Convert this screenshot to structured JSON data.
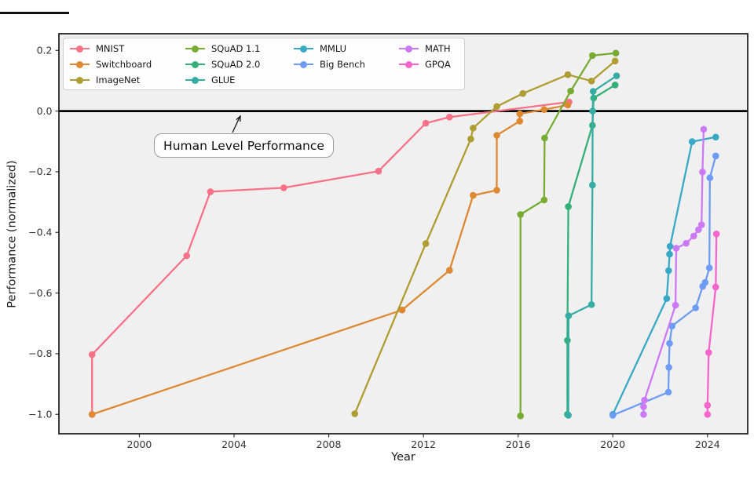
{
  "chart_data": {
    "type": "line",
    "title": "",
    "xlabel": "Year",
    "ylabel": "Performance (normalized)",
    "xlim": [
      1996.6,
      2025.7
    ],
    "ylim": [
      -1.064,
      0.255
    ],
    "grid": false,
    "axes_background": "#f0f0f0",
    "x_ticks": [
      2000,
      2004,
      2008,
      2012,
      2016,
      2020,
      2024
    ],
    "x_tick_labels": [
      "2000",
      "2004",
      "2008",
      "2012",
      "2016",
      "2020",
      "2024"
    ],
    "y_ticks": [
      0.2,
      0.0,
      -0.2,
      -0.4,
      -0.6,
      -0.8,
      -1.0
    ],
    "y_tick_labels": [
      "0.2",
      "0.0",
      "−0.2",
      "−0.4",
      "−0.6",
      "−0.8",
      "−1.0"
    ],
    "reference_line": {
      "y": 0.0,
      "color": "#000000"
    },
    "annotation": {
      "text": "Human Level Performance"
    },
    "legend_position": "upper left",
    "legend": {
      "columns": [
        [
          "MNIST",
          "Switchboard",
          "ImageNet"
        ],
        [
          "SQuAD 1.1",
          "SQuAD 2.0",
          "GLUE"
        ],
        [
          "MMLU",
          "Big Bench"
        ],
        [
          "MATH",
          "GPQA"
        ]
      ]
    },
    "series": [
      {
        "name": "MNIST",
        "color": "#f77189",
        "points": [
          [
            1998.0,
            -1.0
          ],
          [
            1998.0,
            -0.803
          ],
          [
            2002.0,
            -0.477
          ],
          [
            2003.0,
            -0.266
          ],
          [
            2006.1,
            -0.253
          ],
          [
            2010.1,
            -0.198
          ],
          [
            2012.1,
            -0.04
          ],
          [
            2013.1,
            -0.02
          ],
          [
            2018.15,
            0.03
          ]
        ]
      },
      {
        "name": "Switchboard",
        "color": "#dc8932",
        "points": [
          [
            1998.0,
            -1.0
          ],
          [
            2011.1,
            -0.656
          ],
          [
            2013.1,
            -0.525
          ],
          [
            2014.1,
            -0.278
          ],
          [
            2015.1,
            -0.261
          ],
          [
            2015.1,
            -0.08
          ],
          [
            2016.07,
            -0.033
          ],
          [
            2016.07,
            -0.009
          ],
          [
            2017.1,
            0.005
          ],
          [
            2018.1,
            0.02
          ]
        ]
      },
      {
        "name": "ImageNet",
        "color": "#ae9d31",
        "points": [
          [
            2009.1,
            -0.998
          ],
          [
            2012.1,
            -0.437
          ],
          [
            2014.0,
            -0.092
          ],
          [
            2014.1,
            -0.056
          ],
          [
            2015.1,
            0.015
          ],
          [
            2016.2,
            0.058
          ],
          [
            2018.1,
            0.12
          ],
          [
            2019.1,
            0.099
          ],
          [
            2020.1,
            0.165
          ]
        ]
      },
      {
        "name": "SQuAD 1.1",
        "color": "#77ab31",
        "points": [
          [
            2016.1,
            -1.005
          ],
          [
            2016.1,
            -0.341
          ],
          [
            2017.1,
            -0.293
          ],
          [
            2017.12,
            -0.089
          ],
          [
            2018.22,
            0.066
          ],
          [
            2019.14,
            0.183
          ],
          [
            2020.13,
            0.191
          ]
        ]
      },
      {
        "name": "SQuAD 2.0",
        "color": "#33b07a",
        "points": [
          [
            2018.08,
            -1.0
          ],
          [
            2018.08,
            -0.756
          ],
          [
            2018.12,
            -0.315
          ],
          [
            2019.14,
            -0.047
          ],
          [
            2019.19,
            0.043
          ],
          [
            2020.1,
            0.086
          ]
        ]
      },
      {
        "name": "GLUE",
        "color": "#36ada4",
        "points": [
          [
            2018.12,
            -1.003
          ],
          [
            2018.13,
            -0.675
          ],
          [
            2019.1,
            -0.638
          ],
          [
            2019.14,
            -0.244
          ],
          [
            2019.15,
            0.0
          ],
          [
            2019.17,
            0.065
          ],
          [
            2020.16,
            0.116
          ]
        ]
      },
      {
        "name": "MMLU",
        "color": "#38a9c5",
        "points": [
          [
            2020.0,
            -1.0
          ],
          [
            2022.28,
            -0.618
          ],
          [
            2022.36,
            -0.526
          ],
          [
            2022.4,
            -0.472
          ],
          [
            2022.42,
            -0.446
          ],
          [
            2023.35,
            -0.101
          ],
          [
            2024.35,
            -0.086
          ]
        ]
      },
      {
        "name": "Big Bench",
        "color": "#6e9bf4",
        "points": [
          [
            2020.0,
            -1.003
          ],
          [
            2022.35,
            -0.927
          ],
          [
            2022.37,
            -0.845
          ],
          [
            2022.4,
            -0.766
          ],
          [
            2022.5,
            -0.709
          ],
          [
            2023.5,
            -0.649
          ],
          [
            2023.8,
            -0.578
          ],
          [
            2023.9,
            -0.565
          ],
          [
            2024.08,
            -0.517
          ],
          [
            2024.1,
            -0.22
          ],
          [
            2024.35,
            -0.148
          ]
        ]
      },
      {
        "name": "MATH",
        "color": "#cc7af4",
        "points": [
          [
            2021.3,
            -1.0
          ],
          [
            2021.3,
            -0.975
          ],
          [
            2021.34,
            -0.953
          ],
          [
            2022.65,
            -0.64
          ],
          [
            2022.68,
            -0.452
          ],
          [
            2023.1,
            -0.436
          ],
          [
            2023.42,
            -0.412
          ],
          [
            2023.62,
            -0.391
          ],
          [
            2023.75,
            -0.375
          ],
          [
            2023.79,
            -0.201
          ],
          [
            2023.84,
            -0.06
          ]
        ]
      },
      {
        "name": "GPQA",
        "color": "#f565cc",
        "points": [
          [
            2024.0,
            -1.0
          ],
          [
            2024.0,
            -0.97
          ],
          [
            2024.05,
            -0.796
          ],
          [
            2024.35,
            -0.58
          ],
          [
            2024.38,
            -0.405
          ]
        ]
      }
    ]
  }
}
